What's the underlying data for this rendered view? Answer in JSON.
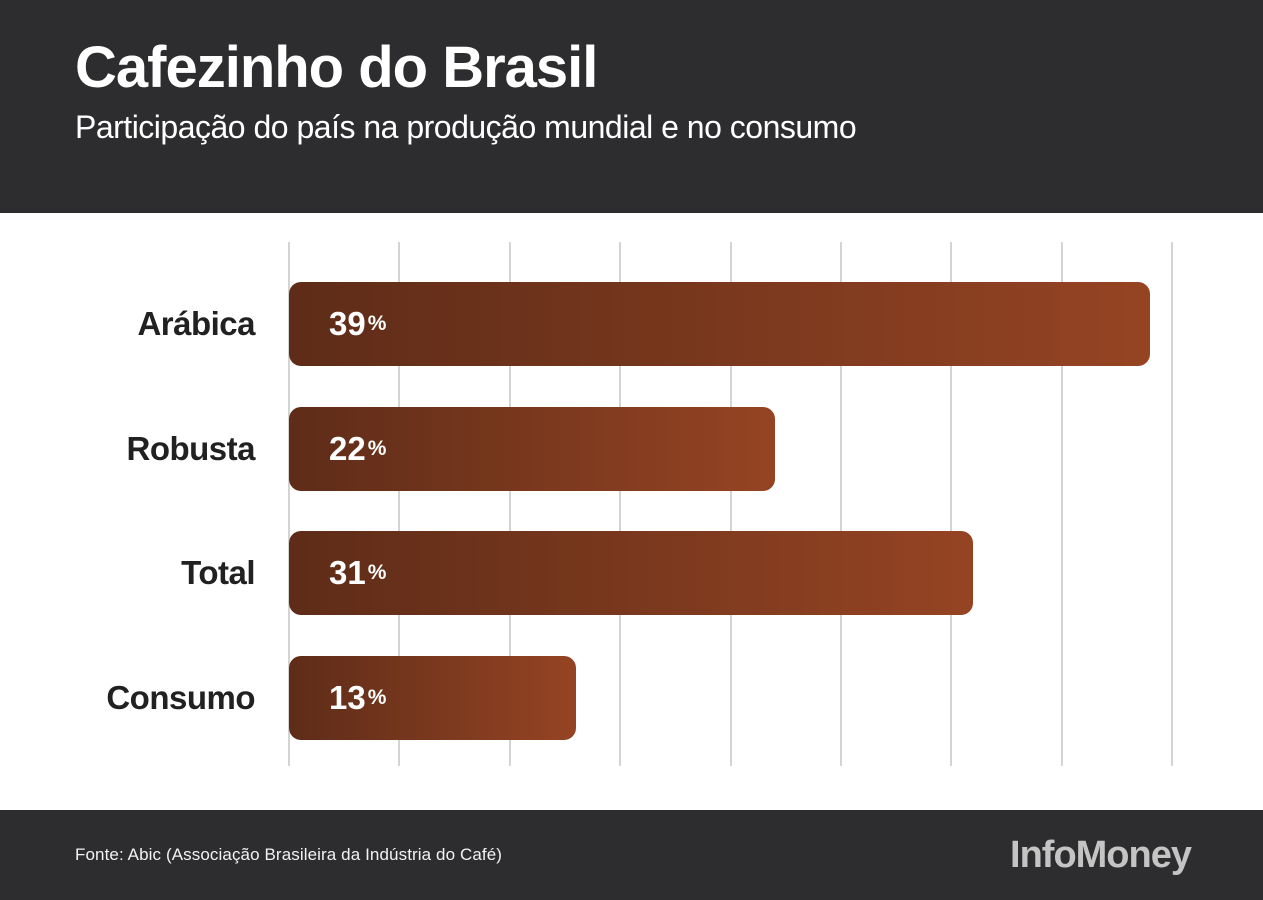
{
  "header": {
    "title": "Cafezinho do Brasil",
    "subtitle": "Participação do país na produção mundial e no consumo"
  },
  "chart_data": {
    "type": "bar",
    "orientation": "horizontal",
    "categories": [
      "Arábica",
      "Robusta",
      "Total",
      "Consumo"
    ],
    "values": [
      39,
      22,
      31,
      13
    ],
    "unit": "%",
    "title": "Cafezinho do Brasil",
    "subtitle": "Participação do país na produção mundial e no consumo",
    "xlabel": "",
    "ylabel": "",
    "xlim": [
      0,
      40
    ],
    "gridline_step": 5,
    "grid": true,
    "legend": false,
    "bar_gradient": [
      "#5e2c18",
      "#954423"
    ]
  },
  "footer": {
    "source": "Fonte: Abic (Associação Brasileira da Indústria do Café)",
    "brand": "InfoMoney"
  },
  "colors": {
    "band_background": "#2d2d2f",
    "chart_background": "#ffffff",
    "gridline": "#d4d4d4",
    "label_text": "#212121",
    "value_text": "#ffffff",
    "brand_text": "#c4c4c4"
  }
}
